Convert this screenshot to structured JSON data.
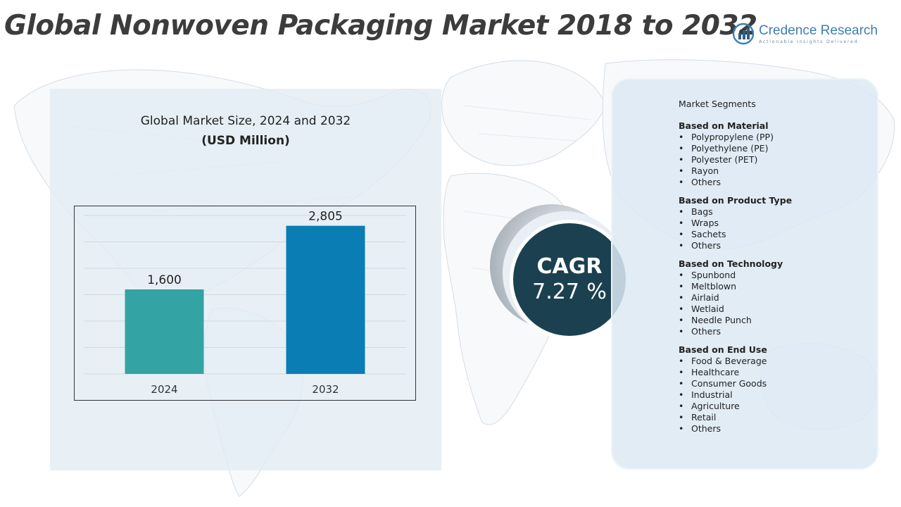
{
  "header": {
    "title": "Global Nonwoven Packaging Market 2018 to 2032"
  },
  "logo": {
    "name": "Credence Research",
    "tagline": "Actionable Insights Delivered",
    "icon": "bar-chart-logo-icon"
  },
  "colors": {
    "bar_2024": "#33a3a3",
    "bar_2032": "#0a7db4",
    "cagr_circle": "#1b4150",
    "panel_bg": "#e1ecf4",
    "title_text": "#3c3c3c"
  },
  "chart_data": {
    "type": "bar",
    "title": "Global Market Size, 2024 and 2032",
    "subtitle": "(USD Million)",
    "categories": [
      "2024",
      "2032"
    ],
    "values": [
      1600,
      2805
    ],
    "value_labels": [
      "1,600",
      "2,805"
    ],
    "xlabel": "",
    "ylabel": "",
    "ylim": [
      0,
      3000
    ],
    "grid": true,
    "legend": "none"
  },
  "cagr": {
    "label": "CAGR",
    "value": "7.27",
    "unit": "%"
  },
  "segments": {
    "heading": "Market Segments",
    "groups": [
      {
        "title": "Based on Material",
        "items": [
          "Polypropylene (PP)",
          "Polyethylene (PE)",
          "Polyester (PET)",
          "Rayon",
          "Others"
        ]
      },
      {
        "title": "Based on Product Type",
        "items": [
          "Bags",
          "Wraps",
          "Sachets",
          "Others"
        ]
      },
      {
        "title": "Based on Technology",
        "items": [
          "Spunbond",
          "Meltblown",
          "Airlaid",
          "Wetlaid",
          "Needle Punch",
          "Others"
        ]
      },
      {
        "title": "Based on End Use",
        "items": [
          "Food & Beverage",
          "Healthcare",
          "Consumer Goods",
          "Industrial",
          "Agriculture",
          "Retail",
          "Others"
        ]
      }
    ]
  }
}
